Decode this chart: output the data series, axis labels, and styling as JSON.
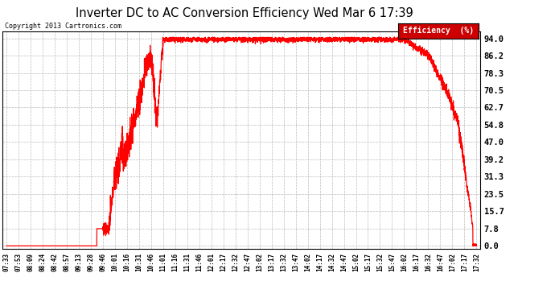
{
  "title": "Inverter DC to AC Conversion Efficiency Wed Mar 6 17:39",
  "copyright": "Copyright 2013 Cartronics.com",
  "line_color": "#ff0000",
  "bg_color": "#ffffff",
  "plot_bg_color": "#ffffff",
  "grid_color": "#bbbbbb",
  "yticks": [
    0.0,
    7.8,
    15.7,
    23.5,
    31.3,
    39.2,
    47.0,
    54.8,
    62.7,
    70.5,
    78.3,
    86.2,
    94.0
  ],
  "ylim": [
    -1.5,
    97.0
  ],
  "xtick_labels": [
    "07:33",
    "07:53",
    "08:09",
    "08:24",
    "08:42",
    "08:57",
    "09:13",
    "09:28",
    "09:46",
    "10:01",
    "10:16",
    "10:31",
    "10:46",
    "11:01",
    "11:16",
    "11:31",
    "11:46",
    "12:01",
    "12:17",
    "12:32",
    "12:47",
    "13:02",
    "13:17",
    "13:32",
    "13:47",
    "14:02",
    "14:17",
    "14:32",
    "14:47",
    "15:02",
    "15:17",
    "15:32",
    "15:47",
    "16:02",
    "16:17",
    "16:32",
    "16:47",
    "17:02",
    "17:17",
    "17:32"
  ],
  "legend_text": "Efficiency  (%)",
  "legend_bg": "#cc0000",
  "legend_text_color": "#ffffff"
}
